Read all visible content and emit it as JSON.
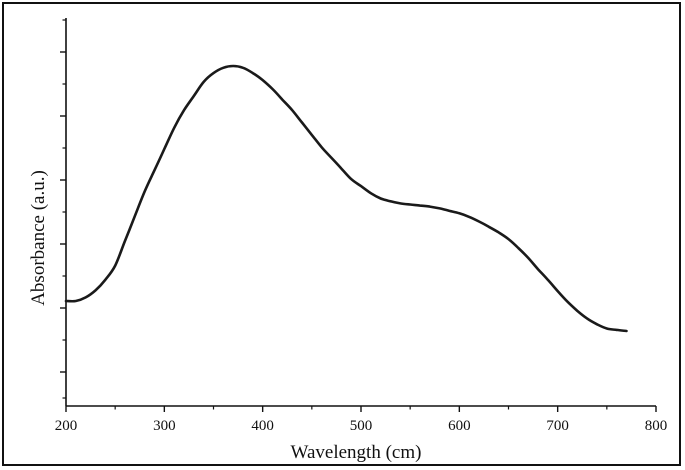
{
  "chart_data": {
    "type": "line",
    "title": "",
    "xlabel": "Wavelength (cm)",
    "ylabel": "Absorbance (a.u.)",
    "xlim": [
      200,
      800
    ],
    "xticks": [
      200,
      300,
      400,
      500,
      600,
      700,
      800
    ],
    "ylim": [
      0,
      1
    ],
    "yticks_shown_labels": false,
    "grid": false,
    "legend": "none",
    "colors": {
      "line": "#1a1a1a",
      "axis": "#111111",
      "frame": "#111111"
    },
    "series": [
      {
        "x": [
          200,
          210,
          220,
          230,
          240,
          250,
          260,
          270,
          280,
          290,
          300,
          310,
          320,
          330,
          340,
          350,
          360,
          370,
          380,
          390,
          400,
          410,
          420,
          430,
          440,
          450,
          460,
          470,
          480,
          490,
          500,
          510,
          520,
          530,
          540,
          550,
          560,
          570,
          580,
          590,
          600,
          610,
          620,
          630,
          640,
          650,
          660,
          670,
          680,
          690,
          700,
          710,
          720,
          730,
          740,
          750,
          760,
          770
        ],
        "y": [
          0.35,
          0.35,
          0.36,
          0.38,
          0.41,
          0.45,
          0.52,
          0.59,
          0.66,
          0.72,
          0.78,
          0.84,
          0.89,
          0.93,
          0.97,
          0.995,
          1.01,
          1.015,
          1.01,
          0.995,
          0.975,
          0.95,
          0.92,
          0.89,
          0.855,
          0.82,
          0.785,
          0.755,
          0.725,
          0.695,
          0.675,
          0.655,
          0.64,
          0.632,
          0.626,
          0.623,
          0.62,
          0.617,
          0.612,
          0.605,
          0.598,
          0.588,
          0.575,
          0.56,
          0.544,
          0.525,
          0.5,
          0.472,
          0.44,
          0.41,
          0.378,
          0.348,
          0.322,
          0.3,
          0.284,
          0.272,
          0.268,
          0.265
        ]
      }
    ]
  }
}
